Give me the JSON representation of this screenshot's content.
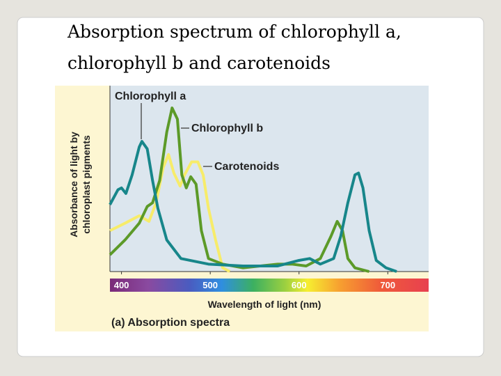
{
  "chart_data": {
    "type": "line",
    "title": [
      "Absorption spectrum of chlorophyll a,",
      "chlorophyll b and carotenoids"
    ],
    "xlabel": "Wavelength of light (nm)",
    "ylabel": [
      "Absorbance of light by",
      "chloroplast pigments"
    ],
    "caption": "(a) Absorption spectra",
    "xlim": [
      387,
      746
    ],
    "xticks": [
      400,
      500,
      600,
      700
    ],
    "ylim": [
      0,
      1
    ],
    "series": [
      {
        "name": "Chlorophyll a",
        "color": "#17868a",
        "x": [
          387,
          396,
          400,
          405,
          412,
          420,
          423,
          429,
          435,
          441,
          451,
          467,
          498,
          537,
          576,
          600,
          612,
          624,
          639,
          647,
          655,
          663,
          667,
          672,
          679,
          687,
          698,
          710
        ],
        "values": [
          0.36,
          0.44,
          0.45,
          0.42,
          0.52,
          0.67,
          0.7,
          0.66,
          0.49,
          0.34,
          0.17,
          0.07,
          0.04,
          0.03,
          0.03,
          0.06,
          0.07,
          0.04,
          0.07,
          0.19,
          0.37,
          0.52,
          0.53,
          0.45,
          0.22,
          0.06,
          0.02,
          0
        ]
      },
      {
        "name": "Chlorophyll b",
        "color": "#5c9a28",
        "x": [
          387,
          404,
          420,
          429,
          435,
          443,
          451,
          457,
          463,
          468,
          473,
          478,
          484,
          490,
          498,
          514,
          537,
          576,
          592,
          608,
          624,
          636,
          643,
          649,
          655,
          663,
          679
        ],
        "values": [
          0.09,
          0.17,
          0.26,
          0.35,
          0.37,
          0.49,
          0.75,
          0.88,
          0.82,
          0.52,
          0.45,
          0.51,
          0.47,
          0.22,
          0.07,
          0.04,
          0.02,
          0.04,
          0.04,
          0.03,
          0.07,
          0.19,
          0.27,
          0.22,
          0.07,
          0.02,
          0
        ]
      },
      {
        "name": "Carotenoids",
        "color": "#f7ec6a",
        "x": [
          387,
          404,
          420,
          431,
          439,
          447,
          453,
          459,
          466,
          471,
          479,
          486,
          492,
          498,
          506,
          514,
          522
        ],
        "values": [
          0.22,
          0.26,
          0.3,
          0.27,
          0.37,
          0.56,
          0.63,
          0.53,
          0.46,
          0.52,
          0.59,
          0.59,
          0.52,
          0.34,
          0.17,
          0.02,
          0
        ]
      }
    ]
  }
}
